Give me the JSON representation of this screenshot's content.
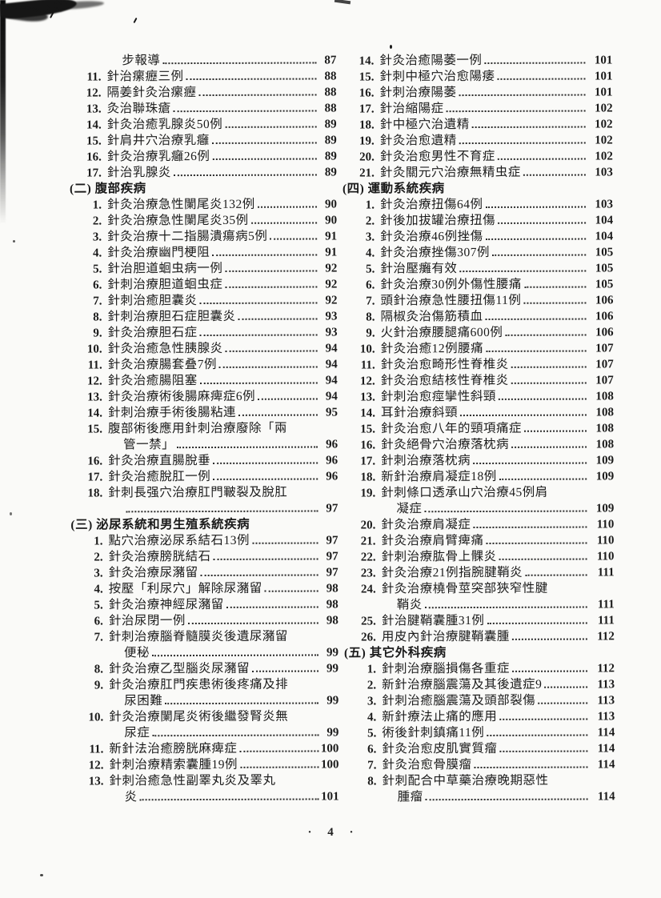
{
  "page": {
    "footer": "· 4 ·"
  },
  "toc": {
    "left_column": [
      {
        "type": "cont",
        "text": "步報導",
        "page": "87"
      },
      {
        "type": "entry",
        "num": "11.",
        "text": "針治瘰癧三例",
        "page": "88"
      },
      {
        "type": "entry",
        "num": "12.",
        "text": "隔姜針灸治瘰癧",
        "page": "88"
      },
      {
        "type": "entry",
        "num": "13.",
        "text": "灸治聯珠瘡",
        "page": "88"
      },
      {
        "type": "entry",
        "num": "14.",
        "text": "針灸治癒乳腺炎50例",
        "page": "89"
      },
      {
        "type": "entry",
        "num": "15.",
        "text": "針肩井穴治療乳癰",
        "page": "89"
      },
      {
        "type": "entry",
        "num": "16.",
        "text": "針灸治療乳癰26例",
        "page": "89"
      },
      {
        "type": "entry",
        "num": "17.",
        "text": "針治乳腺炎",
        "page": "89"
      },
      {
        "type": "section",
        "label": "(二) 腹部疾病"
      },
      {
        "type": "entry",
        "num": "1.",
        "text": "針灸治療急性闌尾炎132例",
        "page": "90"
      },
      {
        "type": "entry",
        "num": "2.",
        "text": "針灸治療急性闌尾炎35例",
        "page": "90"
      },
      {
        "type": "entry",
        "num": "3.",
        "text": "針灸治療十二指腸潰瘍病5例",
        "page": "91"
      },
      {
        "type": "entry",
        "num": "4.",
        "text": "針灸治療幽門梗阻",
        "page": "91"
      },
      {
        "type": "entry",
        "num": "5.",
        "text": "針治胆道蛔虫病一例",
        "page": "92"
      },
      {
        "type": "entry",
        "num": "6.",
        "text": "針刺治療胆道蛔虫症",
        "page": "92"
      },
      {
        "type": "entry",
        "num": "7.",
        "text": "針刺治癒胆囊炎",
        "page": "92"
      },
      {
        "type": "entry",
        "num": "8.",
        "text": "針刺治療胆石症胆囊炎",
        "page": "93"
      },
      {
        "type": "entry",
        "num": "9.",
        "text": "針灸治療胆石症",
        "page": "93"
      },
      {
        "type": "entry",
        "num": "10.",
        "text": "針灸治癒急性胰腺炎",
        "page": "94"
      },
      {
        "type": "entry",
        "num": "11.",
        "text": "針灸治療腸套叠7例",
        "page": "94"
      },
      {
        "type": "entry",
        "num": "12.",
        "text": "針灸治癒腸阻塞",
        "page": "94"
      },
      {
        "type": "entry",
        "num": "13.",
        "text": "針灸治療術後腸麻痺症6例",
        "page": "94"
      },
      {
        "type": "entry",
        "num": "14.",
        "text": "針刺治療手術後腸粘連",
        "page": "95"
      },
      {
        "type": "entry2",
        "num": "15.",
        "line1": "腹部術後應用針刺治療廢除「兩",
        "line2": "管一禁」",
        "page": "96"
      },
      {
        "type": "entry",
        "num": "16.",
        "text": "針灸治療直腸脫垂",
        "page": "96"
      },
      {
        "type": "entry",
        "num": "17.",
        "text": "針灸治癒脫肛一例",
        "page": "96"
      },
      {
        "type": "entry2",
        "num": "18.",
        "line1": "針刺長强穴治療肛門皸裂及脫肛",
        "line2": "",
        "page": "97"
      },
      {
        "type": "section",
        "label": "(三) 泌尿系統和男生殖系統疾病"
      },
      {
        "type": "entry",
        "num": "1.",
        "text": "點穴治療泌尿系結石13例",
        "page": "97"
      },
      {
        "type": "entry",
        "num": "2.",
        "text": "針灸治療膀胱結石",
        "page": "97"
      },
      {
        "type": "entry",
        "num": "3.",
        "text": "針灸治療尿瀦留",
        "page": "97"
      },
      {
        "type": "entry",
        "num": "4.",
        "text": "按壓「利尿穴」解除尿瀦留",
        "page": "98"
      },
      {
        "type": "entry",
        "num": "5.",
        "text": "針灸治療神經尿瀦留",
        "page": "98"
      },
      {
        "type": "entry",
        "num": "6.",
        "text": "針治尿閉一例",
        "page": "98"
      },
      {
        "type": "entry2",
        "num": "7.",
        "line1": "針刺治療腦脊髓膜炎後遺尿瀦留",
        "line2": "便秘",
        "page": "99"
      },
      {
        "type": "entry",
        "num": "8.",
        "text": "針灸治療乙型腦炎尿瀦留",
        "page": "99"
      },
      {
        "type": "entry2",
        "num": "9.",
        "line1": "針灸治療肛門疾患術後疼痛及排",
        "line2": "尿困難",
        "page": "99"
      },
      {
        "type": "entry2",
        "num": "10.",
        "line1": "針灸治療闌尾炎術後繼發腎炎無",
        "line2": "尿症",
        "page": "99"
      },
      {
        "type": "entry",
        "num": "11.",
        "text": "新針法治癒膀胱麻痺症",
        "page": "100"
      },
      {
        "type": "entry",
        "num": "12.",
        "text": "針刺治療精索囊腫19例",
        "page": "100"
      },
      {
        "type": "entry2",
        "num": "13.",
        "line1": "針刺治癒急性副睪丸炎及睪丸",
        "line2": "炎",
        "page": "101"
      }
    ],
    "right_column": [
      {
        "type": "entry",
        "num": "14.",
        "text": "針灸治癒陽萎一例",
        "page": "101"
      },
      {
        "type": "entry",
        "num": "15.",
        "text": "針刺中極穴治愈陽痿",
        "page": "101"
      },
      {
        "type": "entry",
        "num": "16.",
        "text": "針刺治療陽萎",
        "page": "101"
      },
      {
        "type": "entry",
        "num": "17.",
        "text": "針治縮陽症",
        "page": "102"
      },
      {
        "type": "entry",
        "num": "18.",
        "text": "針中極穴治遺精",
        "page": "102"
      },
      {
        "type": "entry",
        "num": "19.",
        "text": "針灸治愈遺精",
        "page": "102"
      },
      {
        "type": "entry",
        "num": "20.",
        "text": "針灸治愈男性不育症",
        "page": "102"
      },
      {
        "type": "entry",
        "num": "21.",
        "text": "針灸關元穴治療無精虫症",
        "page": "103"
      },
      {
        "type": "section",
        "label": "(四) 運動系統疾病"
      },
      {
        "type": "entry",
        "num": "1.",
        "text": "針灸治療扭傷64例",
        "page": "103"
      },
      {
        "type": "entry",
        "num": "2.",
        "text": "針後加拔罐治療扭傷",
        "page": "104"
      },
      {
        "type": "entry",
        "num": "3.",
        "text": "針灸治療46例挫傷",
        "page": "104"
      },
      {
        "type": "entry",
        "num": "4.",
        "text": "針灸治療挫傷307例",
        "page": "105"
      },
      {
        "type": "entry",
        "num": "5.",
        "text": "針治壓癱有效",
        "page": "105"
      },
      {
        "type": "entry",
        "num": "6.",
        "text": "針灸治療30例外傷性腰痛",
        "page": "105"
      },
      {
        "type": "entry",
        "num": "7.",
        "text": "頭針治療急性腰扭傷11例",
        "page": "106"
      },
      {
        "type": "entry",
        "num": "8.",
        "text": "隔椒灸治傷筋積血",
        "page": "106"
      },
      {
        "type": "entry",
        "num": "9.",
        "text": "火針治療腰腿痛600例",
        "page": "106"
      },
      {
        "type": "entry",
        "num": "10.",
        "text": "針灸治癒12例腰痛",
        "page": "107"
      },
      {
        "type": "entry",
        "num": "11.",
        "text": "針灸治愈畸形性脊椎炎",
        "page": "107"
      },
      {
        "type": "entry",
        "num": "12.",
        "text": "針灸治愈結核性脊椎炎",
        "page": "107"
      },
      {
        "type": "entry",
        "num": "13.",
        "text": "針刺治愈痙攣性斜頸",
        "page": "108"
      },
      {
        "type": "entry",
        "num": "14.",
        "text": "耳針治療斜頸",
        "page": "108"
      },
      {
        "type": "entry",
        "num": "15.",
        "text": "針灸治愈八年的頸項痛症",
        "page": "108"
      },
      {
        "type": "entry",
        "num": "16.",
        "text": "針灸絕骨穴治療落枕病",
        "page": "108"
      },
      {
        "type": "entry",
        "num": "17.",
        "text": "針刺治療落枕病",
        "page": "109"
      },
      {
        "type": "entry",
        "num": "18.",
        "text": "新針治療肩凝症18例",
        "page": "109"
      },
      {
        "type": "entry2",
        "num": "19.",
        "line1": "針刺條口透承山穴治療45例肩",
        "line2": "凝症",
        "page": "109"
      },
      {
        "type": "entry",
        "num": "20.",
        "text": "針灸治療肩凝症",
        "page": "110"
      },
      {
        "type": "entry",
        "num": "21.",
        "text": "針灸治療肩臂痺痛",
        "page": "110"
      },
      {
        "type": "entry",
        "num": "22.",
        "text": "針刺治療肱骨上髁炎",
        "page": "110"
      },
      {
        "type": "entry",
        "num": "23.",
        "text": "針灸治療21例指腕腱鞘炎",
        "page": "111"
      },
      {
        "type": "entry2",
        "num": "24.",
        "line1": "針灸治療橈骨莖突部狹窄性腱",
        "line2": "鞘炎",
        "page": "111"
      },
      {
        "type": "entry",
        "num": "25.",
        "text": "針治腱鞘囊腫31例",
        "page": "111"
      },
      {
        "type": "entry",
        "num": "26.",
        "text": "用皮內針治療腱鞘囊腫",
        "page": "112"
      },
      {
        "type": "section",
        "label": "(五) 其它外科疾病"
      },
      {
        "type": "entry",
        "num": "1.",
        "text": "針刺治療腦損傷各重症",
        "page": "112"
      },
      {
        "type": "entry",
        "num": "2.",
        "text": "新針治療腦震蕩及其後遺症9",
        "page": "113"
      },
      {
        "type": "entry",
        "num": "3.",
        "text": "針刺治癒腦震蕩及頭部裂傷",
        "page": "113"
      },
      {
        "type": "entry",
        "num": "4.",
        "text": "新針療法止痛的應用",
        "page": "113"
      },
      {
        "type": "entry",
        "num": "5.",
        "text": "術後針刺鎮痛11例",
        "page": "114"
      },
      {
        "type": "entry",
        "num": "6.",
        "text": "針灸治愈皮肌實質瘤",
        "page": "114"
      },
      {
        "type": "entry",
        "num": "7.",
        "text": "針灸治愈骨膜瘤",
        "page": "114"
      },
      {
        "type": "entry2",
        "num": "8.",
        "line1": "針刺配合中草藥治療晚期惡性",
        "line2": "腫瘤",
        "page": "114"
      }
    ]
  }
}
